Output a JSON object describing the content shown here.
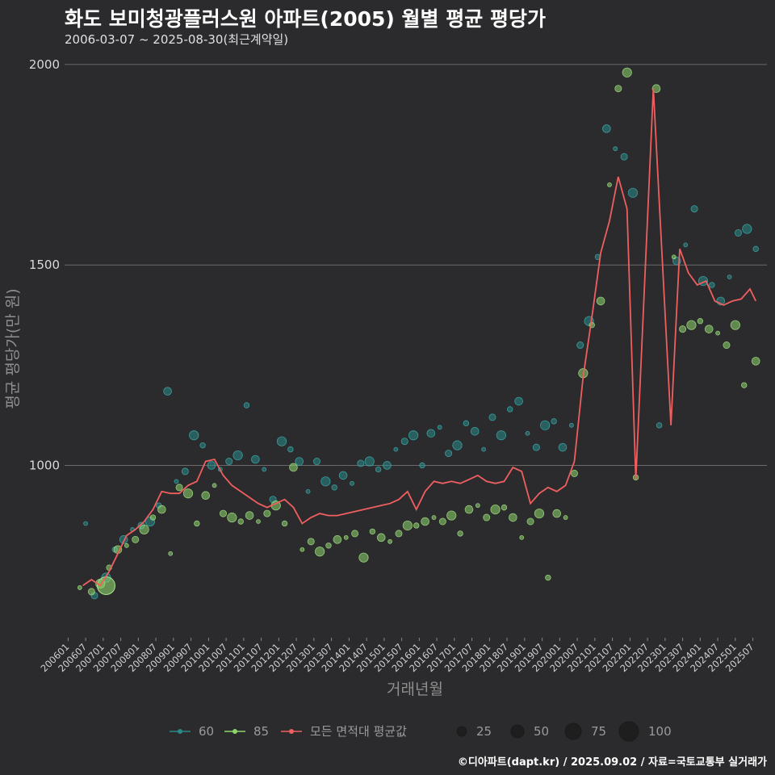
{
  "header": {
    "title": "화도 보미청광플러스원 아파트(2005) 월별 평균 평당가",
    "subtitle": "2006-03-07 ~ 2025-08-30(최근계약일)"
  },
  "footer": {
    "credit": "©디아파트(dapt.kr) / 2025.09.02 / 자료=국토교통부 실거래가"
  },
  "colors": {
    "bg": "#2b2b2d",
    "grid": "#6a6a6a",
    "s60": "#2a8a8a",
    "s85": "#8ed66a",
    "avg": "#ef5f5f"
  },
  "chart_data": {
    "type": "line",
    "xlabel": "거래년월",
    "ylabel": "평균 평당가(만 원)",
    "x_ticks": [
      "200601",
      "200607",
      "200701",
      "200707",
      "200801",
      "200807",
      "200901",
      "200907",
      "201001",
      "201007",
      "201101",
      "201107",
      "201201",
      "201207",
      "201301",
      "201307",
      "201401",
      "201407",
      "201501",
      "201507",
      "201601",
      "201607",
      "201701",
      "201707",
      "201801",
      "201807",
      "201901",
      "201907",
      "202001",
      "202007",
      "202101",
      "202107",
      "202201",
      "202207",
      "202301",
      "202307",
      "202401",
      "202407",
      "202501",
      "202507"
    ],
    "y_ticks": [
      1000,
      1500,
      2000
    ],
    "ylim": [
      570,
      2020
    ],
    "grid": "horizontal",
    "legend": {
      "series_labels": [
        "60",
        "85",
        "모든 면적대 평균값"
      ],
      "size_labels": [
        "25",
        "50",
        "75",
        "100"
      ],
      "position": "bottom"
    },
    "average_line": [
      [
        "2006-06",
        700
      ],
      [
        "2006-09",
        715
      ],
      [
        "2006-12",
        700
      ],
      [
        "2007-03",
        735
      ],
      [
        "2007-06",
        780
      ],
      [
        "2007-09",
        825
      ],
      [
        "2007-12",
        840
      ],
      [
        "2008-03",
        860
      ],
      [
        "2008-06",
        890
      ],
      [
        "2008-09",
        935
      ],
      [
        "2008-12",
        930
      ],
      [
        "2009-03",
        930
      ],
      [
        "2009-06",
        950
      ],
      [
        "2009-09",
        960
      ],
      [
        "2009-12",
        1010
      ],
      [
        "2010-03",
        1015
      ],
      [
        "2010-06",
        975
      ],
      [
        "2010-09",
        950
      ],
      [
        "2010-12",
        935
      ],
      [
        "2011-03",
        920
      ],
      [
        "2011-06",
        905
      ],
      [
        "2011-09",
        895
      ],
      [
        "2011-12",
        905
      ],
      [
        "2012-03",
        915
      ],
      [
        "2012-06",
        895
      ],
      [
        "2012-09",
        855
      ],
      [
        "2012-12",
        870
      ],
      [
        "2013-03",
        880
      ],
      [
        "2013-06",
        875
      ],
      [
        "2013-09",
        875
      ],
      [
        "2013-12",
        880
      ],
      [
        "2014-03",
        885
      ],
      [
        "2014-06",
        890
      ],
      [
        "2014-09",
        895
      ],
      [
        "2014-12",
        900
      ],
      [
        "2015-03",
        905
      ],
      [
        "2015-06",
        915
      ],
      [
        "2015-09",
        935
      ],
      [
        "2015-12",
        890
      ],
      [
        "2016-03",
        935
      ],
      [
        "2016-06",
        960
      ],
      [
        "2016-09",
        955
      ],
      [
        "2016-12",
        960
      ],
      [
        "2017-03",
        955
      ],
      [
        "2017-06",
        965
      ],
      [
        "2017-09",
        975
      ],
      [
        "2017-12",
        960
      ],
      [
        "2018-03",
        955
      ],
      [
        "2018-06",
        960
      ],
      [
        "2018-09",
        995
      ],
      [
        "2018-12",
        985
      ],
      [
        "2019-03",
        905
      ],
      [
        "2019-06",
        930
      ],
      [
        "2019-09",
        945
      ],
      [
        "2019-12",
        935
      ],
      [
        "2020-03",
        950
      ],
      [
        "2020-06",
        1010
      ],
      [
        "2020-09",
        1220
      ],
      [
        "2020-12",
        1370
      ],
      [
        "2021-03",
        1530
      ],
      [
        "2021-06",
        1610
      ],
      [
        "2021-09",
        1720
      ],
      [
        "2021-12",
        1640
      ],
      [
        "2022-03",
        965
      ],
      [
        "2022-09",
        1940
      ],
      [
        "2022-12",
        1520
      ],
      [
        "2023-03",
        1100
      ],
      [
        "2023-06",
        1540
      ],
      [
        "2023-09",
        1480
      ],
      [
        "2023-12",
        1450
      ],
      [
        "2024-03",
        1460
      ],
      [
        "2024-06",
        1410
      ],
      [
        "2024-09",
        1400
      ],
      [
        "2024-12",
        1410
      ],
      [
        "2025-03",
        1415
      ],
      [
        "2025-06",
        1440
      ],
      [
        "2025-08",
        1410
      ]
    ],
    "series_60": [
      [
        "2006-07",
        855
      ],
      [
        "2006-10",
        675
      ],
      [
        "2007-02",
        720
      ],
      [
        "2007-05",
        790
      ],
      [
        "2007-08",
        815
      ],
      [
        "2007-11",
        840
      ],
      [
        "2008-02",
        850
      ],
      [
        "2008-05",
        860
      ],
      [
        "2008-08",
        900
      ],
      [
        "2008-11",
        1185
      ],
      [
        "2009-02",
        960
      ],
      [
        "2009-05",
        985
      ],
      [
        "2009-08",
        1075
      ],
      [
        "2009-11",
        1050
      ],
      [
        "2010-02",
        1000
      ],
      [
        "2010-05",
        990
      ],
      [
        "2010-08",
        1010
      ],
      [
        "2010-11",
        1025
      ],
      [
        "2011-02",
        1150
      ],
      [
        "2011-05",
        1015
      ],
      [
        "2011-08",
        990
      ],
      [
        "2011-11",
        915
      ],
      [
        "2012-02",
        1060
      ],
      [
        "2012-05",
        1040
      ],
      [
        "2012-08",
        1010
      ],
      [
        "2012-11",
        935
      ],
      [
        "2013-02",
        1010
      ],
      [
        "2013-05",
        960
      ],
      [
        "2013-08",
        945
      ],
      [
        "2013-11",
        975
      ],
      [
        "2014-02",
        955
      ],
      [
        "2014-05",
        1005
      ],
      [
        "2014-08",
        1010
      ],
      [
        "2014-11",
        990
      ],
      [
        "2015-02",
        1000
      ],
      [
        "2015-05",
        1040
      ],
      [
        "2015-08",
        1060
      ],
      [
        "2015-11",
        1075
      ],
      [
        "2016-02",
        1000
      ],
      [
        "2016-05",
        1080
      ],
      [
        "2016-08",
        1095
      ],
      [
        "2016-11",
        1030
      ],
      [
        "2017-02",
        1050
      ],
      [
        "2017-05",
        1105
      ],
      [
        "2017-08",
        1085
      ],
      [
        "2017-11",
        1040
      ],
      [
        "2018-02",
        1120
      ],
      [
        "2018-05",
        1075
      ],
      [
        "2018-08",
        1140
      ],
      [
        "2018-11",
        1160
      ],
      [
        "2019-02",
        1080
      ],
      [
        "2019-05",
        1045
      ],
      [
        "2019-08",
        1100
      ],
      [
        "2019-11",
        1110
      ],
      [
        "2020-02",
        1045
      ],
      [
        "2020-05",
        1100
      ],
      [
        "2020-08",
        1300
      ],
      [
        "2020-11",
        1360
      ],
      [
        "2021-02",
        1520
      ],
      [
        "2021-05",
        1840
      ],
      [
        "2021-08",
        1790
      ],
      [
        "2021-11",
        1770
      ],
      [
        "2022-02",
        1680
      ],
      [
        "2022-11",
        1100
      ],
      [
        "2023-05",
        1510
      ],
      [
        "2023-08",
        1550
      ],
      [
        "2023-11",
        1640
      ],
      [
        "2024-02",
        1460
      ],
      [
        "2024-05",
        1450
      ],
      [
        "2024-08",
        1410
      ],
      [
        "2024-11",
        1470
      ],
      [
        "2025-02",
        1580
      ],
      [
        "2025-05",
        1590
      ],
      [
        "2025-08",
        1540
      ]
    ],
    "series_85": [
      [
        "2006-05",
        695
      ],
      [
        "2006-09",
        685
      ],
      [
        "2006-12",
        705
      ],
      [
        "2007-03",
        745
      ],
      [
        "2007-06",
        790
      ],
      [
        "2007-09",
        800
      ],
      [
        "2007-12",
        815
      ],
      [
        "2008-03",
        840
      ],
      [
        "2008-06",
        870
      ],
      [
        "2008-09",
        890
      ],
      [
        "2008-12",
        780
      ],
      [
        "2009-03",
        945
      ],
      [
        "2009-06",
        930
      ],
      [
        "2009-09",
        855
      ],
      [
        "2009-12",
        925
      ],
      [
        "2010-03",
        950
      ],
      [
        "2010-06",
        880
      ],
      [
        "2010-09",
        870
      ],
      [
        "2010-12",
        860
      ],
      [
        "2011-03",
        875
      ],
      [
        "2011-06",
        860
      ],
      [
        "2011-09",
        880
      ],
      [
        "2011-12",
        900
      ],
      [
        "2012-03",
        855
      ],
      [
        "2012-06",
        995
      ],
      [
        "2012-09",
        790
      ],
      [
        "2012-12",
        810
      ],
      [
        "2013-03",
        785
      ],
      [
        "2013-06",
        800
      ],
      [
        "2013-09",
        815
      ],
      [
        "2013-12",
        820
      ],
      [
        "2014-03",
        830
      ],
      [
        "2014-06",
        770
      ],
      [
        "2014-09",
        835
      ],
      [
        "2014-12",
        820
      ],
      [
        "2015-03",
        810
      ],
      [
        "2015-06",
        830
      ],
      [
        "2015-09",
        850
      ],
      [
        "2015-12",
        850
      ],
      [
        "2016-03",
        860
      ],
      [
        "2016-06",
        870
      ],
      [
        "2016-09",
        860
      ],
      [
        "2016-12",
        875
      ],
      [
        "2017-03",
        830
      ],
      [
        "2017-06",
        890
      ],
      [
        "2017-09",
        900
      ],
      [
        "2017-12",
        870
      ],
      [
        "2018-03",
        890
      ],
      [
        "2018-06",
        895
      ],
      [
        "2018-09",
        870
      ],
      [
        "2018-12",
        820
      ],
      [
        "2019-03",
        860
      ],
      [
        "2019-06",
        880
      ],
      [
        "2019-09",
        720
      ],
      [
        "2019-12",
        880
      ],
      [
        "2020-03",
        870
      ],
      [
        "2020-06",
        980
      ],
      [
        "2020-09",
        1230
      ],
      [
        "2020-12",
        1350
      ],
      [
        "2021-03",
        1410
      ],
      [
        "2021-06",
        1700
      ],
      [
        "2021-09",
        1940
      ],
      [
        "2021-12",
        1980
      ],
      [
        "2022-03",
        970
      ],
      [
        "2022-10",
        1940
      ],
      [
        "2023-04",
        1520
      ],
      [
        "2023-07",
        1340
      ],
      [
        "2023-10",
        1350
      ],
      [
        "2024-01",
        1360
      ],
      [
        "2024-04",
        1340
      ],
      [
        "2024-07",
        1330
      ],
      [
        "2024-10",
        1300
      ],
      [
        "2025-01",
        1350
      ],
      [
        "2025-04",
        1200
      ],
      [
        "2025-08",
        1260
      ]
    ]
  }
}
